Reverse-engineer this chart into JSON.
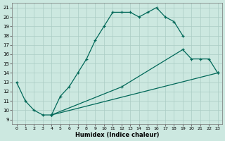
{
  "xlabel": "Humidex (Indice chaleur)",
  "bg_color": "#cce8e0",
  "grid_color": "#aaccc4",
  "line_color": "#006858",
  "xlim": [
    -0.5,
    23.5
  ],
  "ylim": [
    8.5,
    21.5
  ],
  "xticks": [
    0,
    1,
    2,
    3,
    4,
    5,
    6,
    7,
    8,
    9,
    10,
    11,
    12,
    13,
    14,
    15,
    16,
    17,
    18,
    19,
    20,
    21,
    22,
    23
  ],
  "yticks": [
    9,
    10,
    11,
    12,
    13,
    14,
    15,
    16,
    17,
    18,
    19,
    20,
    21
  ],
  "curve1_x": [
    0,
    1,
    2,
    3,
    4,
    5,
    6,
    7,
    8,
    9,
    10,
    11,
    12,
    13,
    14,
    15,
    16,
    17,
    18,
    19
  ],
  "curve1_y": [
    13,
    11,
    10,
    9.5,
    9.5,
    11.5,
    12.5,
    14,
    15.5,
    17.5,
    19.0,
    20.5,
    20.5,
    20.5,
    20.0,
    20.5,
    21.0,
    20.0,
    19.5,
    18.0
  ],
  "curve2_x": [
    4,
    12,
    19,
    20,
    21,
    22,
    23
  ],
  "curve2_y": [
    9.5,
    12.5,
    16.5,
    15.5,
    15.5,
    15.5,
    14.0
  ],
  "curve3_x": [
    4,
    23
  ],
  "curve3_y": [
    9.5,
    14.0
  ]
}
